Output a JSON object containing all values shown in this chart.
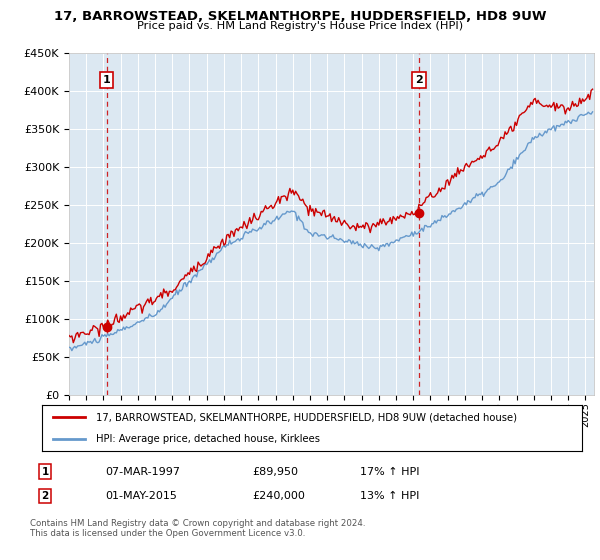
{
  "title": "17, BARROWSTEAD, SKELMANTHORPE, HUDDERSFIELD, HD8 9UW",
  "subtitle": "Price paid vs. HM Land Registry's House Price Index (HPI)",
  "background_color": "#dde8f0",
  "plot_bg_color": "#dce8f2",
  "ylabel_ticks": [
    "£0",
    "£50K",
    "£100K",
    "£150K",
    "£200K",
    "£250K",
    "£300K",
    "£350K",
    "£400K",
    "£450K"
  ],
  "ytick_values": [
    0,
    50000,
    100000,
    150000,
    200000,
    250000,
    300000,
    350000,
    400000,
    450000
  ],
  "ylim": [
    0,
    450000
  ],
  "xlim_start": 1995.0,
  "xlim_end": 2025.5,
  "sale1_x": 1997.18,
  "sale1_y": 89950,
  "sale1_label": "1",
  "sale1_date": "07-MAR-1997",
  "sale1_price": "£89,950",
  "sale1_hpi": "17% ↑ HPI",
  "sale2_x": 2015.33,
  "sale2_y": 240000,
  "sale2_label": "2",
  "sale2_date": "01-MAY-2015",
  "sale2_price": "£240,000",
  "sale2_hpi": "13% ↑ HPI",
  "red_line_color": "#cc0000",
  "blue_line_color": "#6699cc",
  "legend_label_red": "17, BARROWSTEAD, SKELMANTHORPE, HUDDERSFIELD, HD8 9UW (detached house)",
  "legend_label_blue": "HPI: Average price, detached house, Kirklees",
  "footer": "Contains HM Land Registry data © Crown copyright and database right 2024.\nThis data is licensed under the Open Government Licence v3.0.",
  "xtick_years": [
    1995,
    1996,
    1997,
    1998,
    1999,
    2000,
    2001,
    2002,
    2003,
    2004,
    2005,
    2006,
    2007,
    2008,
    2009,
    2010,
    2011,
    2012,
    2013,
    2014,
    2015,
    2016,
    2017,
    2018,
    2019,
    2020,
    2021,
    2022,
    2023,
    2024,
    2025
  ]
}
